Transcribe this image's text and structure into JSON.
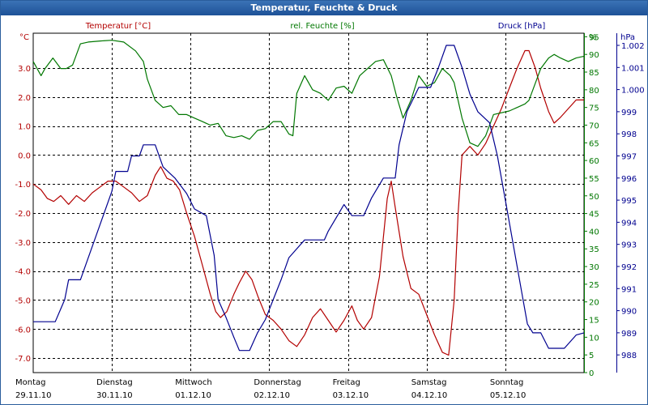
{
  "window": {
    "title": "Temperatur, Feuchte & Druck"
  },
  "colors": {
    "temperature": "#b30000",
    "humidity": "#007700",
    "pressure": "#00008f",
    "grid": "#000000",
    "titlebar": "#1d5197"
  },
  "chart_data": {
    "type": "line",
    "title": "Temperatur, Feuchte & Druck",
    "x": {
      "domain": [
        0,
        7
      ],
      "days": [
        {
          "day": "Montag",
          "date": "29.11.10"
        },
        {
          "day": "Dienstag",
          "date": "30.11.10"
        },
        {
          "day": "Mittwoch",
          "date": "01.12.10"
        },
        {
          "day": "Donnerstag",
          "date": "02.12.10"
        },
        {
          "day": "Freitag",
          "date": "03.12.10"
        },
        {
          "day": "Samstag",
          "date": "04.12.10"
        },
        {
          "day": "Sonntag",
          "date": "05.12.10"
        }
      ]
    },
    "axes": {
      "temperature": {
        "label": "Temperatur [°C]",
        "unit": "°C",
        "ylim": [
          -7.5,
          4.2
        ],
        "ticks": [
          3.0,
          2.0,
          1.0,
          0.0,
          -1.0,
          -2.0,
          -3.0,
          -4.0,
          -5.0,
          -6.0,
          -7.0
        ],
        "tick_labels": [
          "3.0",
          "2.0",
          "1.0",
          "0.0",
          "-1.0",
          "-2.0",
          "-3.0",
          "-4.0",
          "-5.0",
          "-6.0",
          "-7.0"
        ]
      },
      "humidity": {
        "label": "rel. Feuchte [%]",
        "unit": "%",
        "ylim": [
          0,
          96
        ],
        "ticks": [
          95,
          90,
          85,
          80,
          75,
          70,
          65,
          60,
          55,
          50,
          45,
          40,
          35,
          30,
          25,
          20,
          15,
          10,
          5,
          0
        ],
        "tick_labels": [
          "95",
          "90",
          "85",
          "80",
          "75",
          "70",
          "65",
          "60",
          "55",
          "50",
          "45",
          "40",
          "35",
          "30",
          "25",
          "20",
          "15",
          "10",
          "5",
          "0"
        ]
      },
      "pressure": {
        "label": "Druck [hPa]",
        "unit": "hPa",
        "ylim": [
          987.2,
          1002.55
        ],
        "ticks": [
          1002,
          1001,
          1000,
          999,
          998,
          997,
          996,
          995,
          994,
          993,
          992,
          991,
          990,
          989,
          988
        ],
        "tick_labels": [
          "1.002",
          "1.001",
          "1.000",
          "999",
          "998",
          "997",
          "996",
          "995",
          "994",
          "993",
          "992",
          "991",
          "990",
          "989",
          "988"
        ]
      }
    },
    "series": [
      {
        "name": "Temperatur [°C]",
        "axis": "temperature",
        "color": "#b30000",
        "points": [
          [
            0.0,
            -1.0
          ],
          [
            0.1,
            -1.2
          ],
          [
            0.18,
            -1.5
          ],
          [
            0.26,
            -1.6
          ],
          [
            0.35,
            -1.4
          ],
          [
            0.45,
            -1.7
          ],
          [
            0.55,
            -1.4
          ],
          [
            0.65,
            -1.6
          ],
          [
            0.75,
            -1.3
          ],
          [
            0.85,
            -1.1
          ],
          [
            0.95,
            -0.9
          ],
          [
            1.05,
            -0.9
          ],
          [
            1.15,
            -1.1
          ],
          [
            1.25,
            -1.3
          ],
          [
            1.35,
            -1.6
          ],
          [
            1.45,
            -1.4
          ],
          [
            1.55,
            -0.7
          ],
          [
            1.62,
            -0.4
          ],
          [
            1.7,
            -0.8
          ],
          [
            1.78,
            -0.9
          ],
          [
            1.86,
            -1.2
          ],
          [
            1.95,
            -2.0
          ],
          [
            2.05,
            -2.8
          ],
          [
            2.15,
            -3.8
          ],
          [
            2.25,
            -4.8
          ],
          [
            2.32,
            -5.4
          ],
          [
            2.38,
            -5.6
          ],
          [
            2.46,
            -5.4
          ],
          [
            2.55,
            -4.8
          ],
          [
            2.62,
            -4.4
          ],
          [
            2.7,
            -4.0
          ],
          [
            2.78,
            -4.3
          ],
          [
            2.86,
            -4.9
          ],
          [
            2.95,
            -5.5
          ],
          [
            3.05,
            -5.7
          ],
          [
            3.15,
            -6.0
          ],
          [
            3.25,
            -6.4
          ],
          [
            3.35,
            -6.6
          ],
          [
            3.45,
            -6.2
          ],
          [
            3.55,
            -5.6
          ],
          [
            3.65,
            -5.3
          ],
          [
            3.75,
            -5.7
          ],
          [
            3.85,
            -6.1
          ],
          [
            3.95,
            -5.7
          ],
          [
            4.05,
            -5.2
          ],
          [
            4.12,
            -5.7
          ],
          [
            4.2,
            -6.0
          ],
          [
            4.3,
            -5.6
          ],
          [
            4.4,
            -4.2
          ],
          [
            4.5,
            -1.5
          ],
          [
            4.55,
            -0.9
          ],
          [
            4.6,
            -1.8
          ],
          [
            4.7,
            -3.5
          ],
          [
            4.8,
            -4.6
          ],
          [
            4.9,
            -4.8
          ],
          [
            5.0,
            -5.5
          ],
          [
            5.1,
            -6.2
          ],
          [
            5.2,
            -6.8
          ],
          [
            5.28,
            -6.9
          ],
          [
            5.35,
            -5.0
          ],
          [
            5.4,
            -2.0
          ],
          [
            5.45,
            0.0
          ],
          [
            5.55,
            0.3
          ],
          [
            5.65,
            0.0
          ],
          [
            5.75,
            0.4
          ],
          [
            5.85,
            1.0
          ],
          [
            5.95,
            1.6
          ],
          [
            6.05,
            2.3
          ],
          [
            6.15,
            3.0
          ],
          [
            6.25,
            3.6
          ],
          [
            6.3,
            3.6
          ],
          [
            6.38,
            3.0
          ],
          [
            6.45,
            2.3
          ],
          [
            6.55,
            1.5
          ],
          [
            6.62,
            1.1
          ],
          [
            6.7,
            1.3
          ],
          [
            6.8,
            1.6
          ],
          [
            6.9,
            1.9
          ],
          [
            7.0,
            1.9
          ]
        ]
      },
      {
        "name": "rel. Feuchte [%]",
        "axis": "humidity",
        "color": "#007700",
        "points": [
          [
            0.0,
            88
          ],
          [
            0.1,
            84
          ],
          [
            0.15,
            86
          ],
          [
            0.25,
            89
          ],
          [
            0.35,
            86
          ],
          [
            0.42,
            86
          ],
          [
            0.5,
            87
          ],
          [
            0.6,
            93
          ],
          [
            0.7,
            93.5
          ],
          [
            0.85,
            93.8
          ],
          [
            1.0,
            94
          ],
          [
            1.15,
            93.5
          ],
          [
            1.3,
            91
          ],
          [
            1.4,
            88
          ],
          [
            1.45,
            83
          ],
          [
            1.55,
            77
          ],
          [
            1.65,
            75
          ],
          [
            1.75,
            75.5
          ],
          [
            1.85,
            73
          ],
          [
            1.95,
            73
          ],
          [
            2.05,
            72
          ],
          [
            2.15,
            71
          ],
          [
            2.25,
            70
          ],
          [
            2.35,
            70.5
          ],
          [
            2.45,
            67
          ],
          [
            2.55,
            66.5
          ],
          [
            2.65,
            67
          ],
          [
            2.75,
            66
          ],
          [
            2.85,
            68.5
          ],
          [
            2.95,
            69
          ],
          [
            3.05,
            71
          ],
          [
            3.15,
            71
          ],
          [
            3.25,
            67.5
          ],
          [
            3.3,
            67
          ],
          [
            3.35,
            79
          ],
          [
            3.45,
            84
          ],
          [
            3.55,
            80
          ],
          [
            3.65,
            79
          ],
          [
            3.75,
            77
          ],
          [
            3.85,
            80.5
          ],
          [
            3.95,
            81
          ],
          [
            4.05,
            79
          ],
          [
            4.15,
            84
          ],
          [
            4.25,
            86
          ],
          [
            4.35,
            88
          ],
          [
            4.45,
            88.5
          ],
          [
            4.55,
            84
          ],
          [
            4.62,
            78
          ],
          [
            4.7,
            72
          ],
          [
            4.8,
            77
          ],
          [
            4.9,
            84
          ],
          [
            5.0,
            81
          ],
          [
            5.1,
            82
          ],
          [
            5.2,
            86
          ],
          [
            5.3,
            84
          ],
          [
            5.35,
            82
          ],
          [
            5.45,
            72
          ],
          [
            5.55,
            65
          ],
          [
            5.65,
            64
          ],
          [
            5.75,
            67
          ],
          [
            5.85,
            73
          ],
          [
            6.05,
            74
          ],
          [
            6.15,
            75
          ],
          [
            6.25,
            76
          ],
          [
            6.3,
            77
          ],
          [
            6.35,
            80
          ],
          [
            6.45,
            86
          ],
          [
            6.55,
            89
          ],
          [
            6.62,
            90
          ],
          [
            6.7,
            89
          ],
          [
            6.8,
            88
          ],
          [
            6.9,
            89
          ],
          [
            7.0,
            89.5
          ]
        ]
      },
      {
        "name": "Druck [hPa]",
        "axis": "pressure",
        "color": "#00008f",
        "points": [
          [
            0.0,
            989.5
          ],
          [
            0.28,
            989.5
          ],
          [
            0.4,
            990.5
          ],
          [
            0.45,
            991.4
          ],
          [
            0.6,
            991.4
          ],
          [
            0.7,
            992.4
          ],
          [
            0.8,
            993.4
          ],
          [
            0.9,
            994.4
          ],
          [
            1.0,
            995.4
          ],
          [
            1.05,
            996.3
          ],
          [
            1.2,
            996.3
          ],
          [
            1.25,
            997.0
          ],
          [
            1.35,
            997.0
          ],
          [
            1.4,
            997.5
          ],
          [
            1.55,
            997.5
          ],
          [
            1.65,
            996.5
          ],
          [
            1.8,
            996.0
          ],
          [
            1.95,
            995.3
          ],
          [
            2.05,
            994.6
          ],
          [
            2.2,
            994.3
          ],
          [
            2.3,
            992.5
          ],
          [
            2.35,
            990.5
          ],
          [
            2.45,
            989.7
          ],
          [
            2.55,
            988.8
          ],
          [
            2.62,
            988.2
          ],
          [
            2.75,
            988.2
          ],
          [
            2.85,
            989.0
          ],
          [
            2.95,
            989.6
          ],
          [
            3.05,
            990.5
          ],
          [
            3.15,
            991.4
          ],
          [
            3.25,
            992.4
          ],
          [
            3.35,
            992.8
          ],
          [
            3.45,
            993.2
          ],
          [
            3.55,
            993.2
          ],
          [
            3.7,
            993.2
          ],
          [
            3.75,
            993.6
          ],
          [
            3.85,
            994.2
          ],
          [
            3.95,
            994.8
          ],
          [
            4.05,
            994.3
          ],
          [
            4.2,
            994.3
          ],
          [
            4.3,
            995.1
          ],
          [
            4.45,
            996.0
          ],
          [
            4.6,
            996.0
          ],
          [
            4.65,
            997.5
          ],
          [
            4.75,
            999.0
          ],
          [
            4.9,
            1000.1
          ],
          [
            5.05,
            1000.1
          ],
          [
            5.15,
            1001.0
          ],
          [
            5.25,
            1002.0
          ],
          [
            5.35,
            1002.0
          ],
          [
            5.45,
            1001.0
          ],
          [
            5.55,
            999.8
          ],
          [
            5.65,
            999.0
          ],
          [
            5.8,
            998.5
          ],
          [
            5.9,
            997.0
          ],
          [
            6.0,
            995.0
          ],
          [
            6.1,
            993.0
          ],
          [
            6.2,
            991.0
          ],
          [
            6.28,
            989.4
          ],
          [
            6.35,
            989.0
          ],
          [
            6.45,
            989.0
          ],
          [
            6.55,
            988.3
          ],
          [
            6.75,
            988.3
          ],
          [
            6.9,
            988.9
          ],
          [
            7.0,
            989.0
          ]
        ]
      }
    ]
  }
}
